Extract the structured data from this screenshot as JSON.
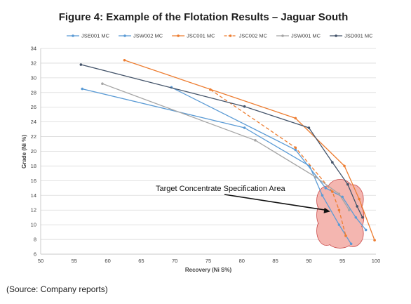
{
  "chart_data": {
    "type": "line",
    "title": "Figure 4: Example of the Flotation Results – Jaguar South",
    "xlabel": "Recovery (Ni S%)",
    "ylabel": "Grade (Ni %)",
    "xlim": [
      50,
      100
    ],
    "ylim": [
      6,
      34
    ],
    "xticks": [
      50,
      55,
      60,
      65,
      70,
      75,
      80,
      85,
      90,
      95,
      100
    ],
    "yticks": [
      6,
      8,
      10,
      12,
      14,
      16,
      18,
      20,
      22,
      24,
      26,
      28,
      30,
      32,
      34
    ],
    "grid": "horizontal",
    "legend_position": "top",
    "series": [
      {
        "name": "JSE001 MC",
        "color": "#5b9bd5",
        "dash": false,
        "x": [
          56.2,
          80.4,
          90.1,
          92.0,
          94.5,
          96.3
        ],
        "y": [
          28.5,
          23.2,
          18.0,
          14.0,
          10.0,
          7.4
        ]
      },
      {
        "name": "JSW002 MC",
        "color": "#5b9bd5",
        "dash": false,
        "x": [
          69.5,
          88.0,
          92.5,
          95.0,
          97.0,
          98.5
        ],
        "y": [
          28.7,
          20.2,
          15.0,
          13.8,
          11.0,
          9.3
        ]
      },
      {
        "name": "JSC001 MC",
        "color": "#ed7d31",
        "dash": false,
        "x": [
          62.5,
          88.0,
          95.3,
          97.5,
          99.8
        ],
        "y": [
          32.4,
          24.5,
          18.0,
          13.5,
          7.9
        ]
      },
      {
        "name": "JSC002 MC",
        "color": "#ed7d31",
        "dash": true,
        "x": [
          75.3,
          88.0,
          93.5,
          94.5,
          95.5
        ],
        "y": [
          28.4,
          20.5,
          14.5,
          12.0,
          8.5
        ]
      },
      {
        "name": "JSW001 MC",
        "color": "#a5a5a5",
        "dash": false,
        "x": [
          59.2,
          82.0,
          91.0,
          94.5,
          96.0
        ],
        "y": [
          29.2,
          21.5,
          16.5,
          14.2,
          12.0
        ]
      },
      {
        "name": "JSD001 MC",
        "color": "#44546a",
        "dash": false,
        "x": [
          56.0,
          80.4,
          90.0,
          93.5,
          95.8,
          97.2,
          98.0
        ],
        "y": [
          31.8,
          26.1,
          23.2,
          18.5,
          15.5,
          12.5,
          11.0
        ]
      }
    ],
    "annotations": [
      {
        "text": "Target Concentrate Specification Area",
        "arrow_to": [
          93.2,
          11.8
        ]
      }
    ],
    "highlight_region": {
      "x_range": [
        91.3,
        98.0
      ],
      "y_range": [
        7.0,
        16.0
      ],
      "color": "#f4b6b0"
    }
  },
  "source_note": "(Source:  Company reports)"
}
